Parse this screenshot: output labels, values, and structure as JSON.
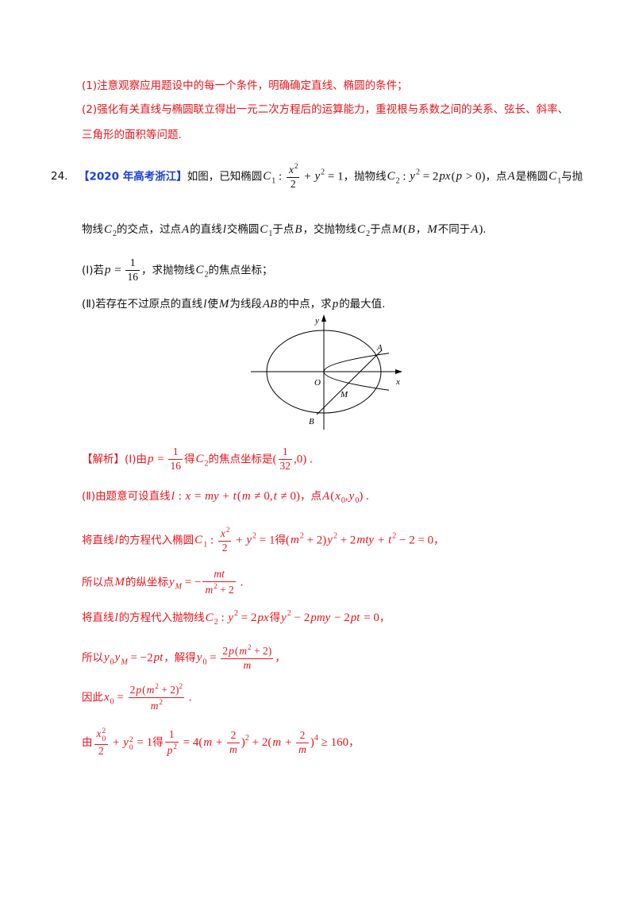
{
  "colors": {
    "note_red": "#e8141b",
    "tag_blue": "#1a3fd6",
    "text": "#111111"
  },
  "notes": [
    {
      "runs": [
        {
          "t": "(1)注意观察应用题设中的每一个条件，明确确定直线、椭圆的条件；"
        }
      ]
    },
    {
      "runs": [
        {
          "t": "(2)强化有关直线与椭圆联立得出一元二次方程后的运算能力，重视根与系数之间的关系、弦长、斜率、"
        }
      ]
    },
    {
      "runs": [
        {
          "t": "三角形的面积等问题."
        }
      ]
    }
  ],
  "problem": {
    "number": "24.",
    "lines": [
      {
        "runs": [
          {
            "tag": "【2020 年高考浙江】"
          },
          {
            "t": "如图，已知椭圆"
          },
          {
            "i": "C"
          },
          {
            "sub": "1"
          },
          {
            "n": " : "
          },
          {
            "frac": {
              "num": [
                {
                  "i": "x"
                },
                {
                  "sup": "2"
                }
              ],
              "den": [
                {
                  "n": "2"
                }
              ]
            }
          },
          {
            "n": " + "
          },
          {
            "i": "y"
          },
          {
            "sup": "2"
          },
          {
            "n": " = 1"
          },
          {
            "t": "，抛物线"
          },
          {
            "i": "C"
          },
          {
            "sub": "2"
          },
          {
            "n": " : "
          },
          {
            "i": "y"
          },
          {
            "sup": "2"
          },
          {
            "n": " = 2"
          },
          {
            "i": "px"
          },
          {
            "n": "("
          },
          {
            "i": "p"
          },
          {
            "n": " > 0)"
          },
          {
            "t": "，点"
          },
          {
            "i": "A"
          },
          {
            "t": "是椭圆"
          },
          {
            "i": "C"
          },
          {
            "sub": "1"
          },
          {
            "t": "与抛"
          }
        ]
      },
      {
        "runs": [
          {
            "t": "物线"
          },
          {
            "i": "C"
          },
          {
            "sub": "2"
          },
          {
            "t": "的交点，过点"
          },
          {
            "i": "A"
          },
          {
            "t": "的直线"
          },
          {
            "i": "l"
          },
          {
            "t": "交椭圆"
          },
          {
            "i": "C"
          },
          {
            "sub": "1"
          },
          {
            "t": "于点"
          },
          {
            "i": "B"
          },
          {
            "t": "，交抛物线"
          },
          {
            "i": "C"
          },
          {
            "sub": "2"
          },
          {
            "t": "于点"
          },
          {
            "i": "M"
          },
          {
            "n": "("
          },
          {
            "i": "B"
          },
          {
            "t": "，"
          },
          {
            "i": "M"
          },
          {
            "t": "不同于"
          },
          {
            "i": "A"
          },
          {
            "n": ")."
          }
        ]
      },
      {
        "runs": [
          {
            "t": "(Ⅰ)若"
          },
          {
            "i": "p"
          },
          {
            "n": " = "
          },
          {
            "frac": {
              "num": [
                {
                  "n": "1"
                }
              ],
              "den": [
                {
                  "n": "16"
                }
              ]
            }
          },
          {
            "t": "，求抛物线"
          },
          {
            "i": "C"
          },
          {
            "sub": "2"
          },
          {
            "t": "的焦点坐标；"
          }
        ]
      },
      {
        "runs": [
          {
            "t": "(Ⅱ)若存在不过原点的直线"
          },
          {
            "i": "l"
          },
          {
            "t": "使"
          },
          {
            "i": "M"
          },
          {
            "t": "为线段"
          },
          {
            "i": "AB"
          },
          {
            "t": "的中点，求"
          },
          {
            "i": "p"
          },
          {
            "t": "的最大值."
          }
        ]
      }
    ]
  },
  "figure": {
    "y_axis": "y",
    "x_axis": "x",
    "origin": "O",
    "point_a": "A",
    "point_m": "M",
    "point_b": "B"
  },
  "solution": {
    "lines": [
      {
        "runs": [
          {
            "t": "【解析】(Ⅰ)由"
          },
          {
            "i": "p"
          },
          {
            "n": " = "
          },
          {
            "frac": {
              "num": [
                {
                  "n": "1"
                }
              ],
              "den": [
                {
                  "n": "16"
                }
              ]
            }
          },
          {
            "t": "得"
          },
          {
            "i": "C"
          },
          {
            "sub": "2"
          },
          {
            "t": "的焦点坐标是"
          },
          {
            "n": "("
          },
          {
            "frac": {
              "num": [
                {
                  "n": "1"
                }
              ],
              "den": [
                {
                  "n": "32"
                }
              ]
            }
          },
          {
            "n": ",0) ."
          }
        ]
      },
      {
        "runs": [
          {
            "t": "(Ⅱ)由题意可设直线"
          },
          {
            "i": "l"
          },
          {
            "n": " : "
          },
          {
            "i": "x"
          },
          {
            "n": " = "
          },
          {
            "i": "my"
          },
          {
            "n": " + "
          },
          {
            "i": "t"
          },
          {
            "n": "("
          },
          {
            "i": "m"
          },
          {
            "n": " ≠ 0,"
          },
          {
            "i": "t"
          },
          {
            "n": " ≠ 0)"
          },
          {
            "t": "，点"
          },
          {
            "i": "A"
          },
          {
            "n": "("
          },
          {
            "i": "x"
          },
          {
            "sub": "0"
          },
          {
            "n": ","
          },
          {
            "i": "y"
          },
          {
            "sub": "0"
          },
          {
            "n": ") ."
          }
        ]
      },
      {
        "runs": [
          {
            "t": "将直线"
          },
          {
            "i": "l"
          },
          {
            "t": "的方程代入椭圆"
          },
          {
            "i": "C"
          },
          {
            "sub": "1"
          },
          {
            "n": " : "
          },
          {
            "frac": {
              "num": [
                {
                  "i": "x"
                },
                {
                  "sup": "2"
                }
              ],
              "den": [
                {
                  "n": "2"
                }
              ]
            }
          },
          {
            "n": " + "
          },
          {
            "i": "y"
          },
          {
            "sup": "2"
          },
          {
            "n": " = 1"
          },
          {
            "t": "得"
          },
          {
            "n": "("
          },
          {
            "i": "m"
          },
          {
            "sup": "2"
          },
          {
            "n": " + 2)"
          },
          {
            "i": "y"
          },
          {
            "sup": "2"
          },
          {
            "n": " + 2"
          },
          {
            "i": "mty"
          },
          {
            "n": " + "
          },
          {
            "i": "t"
          },
          {
            "sup": "2"
          },
          {
            "n": " − 2 = 0"
          },
          {
            "t": "，"
          }
        ]
      },
      {
        "runs": [
          {
            "t": "所以点"
          },
          {
            "i": "M"
          },
          {
            "t": "的纵坐标"
          },
          {
            "i": "y"
          },
          {
            "subi": "M"
          },
          {
            "n": " = −"
          },
          {
            "frac": {
              "num": [
                {
                  "i": "mt"
                }
              ],
              "den": [
                {
                  "i": "m"
                },
                {
                  "sup": "2"
                },
                {
                  "n": " + 2"
                }
              ]
            }
          },
          {
            "n": " ."
          }
        ]
      },
      {
        "runs": [
          {
            "t": "将直线"
          },
          {
            "i": "l"
          },
          {
            "t": "的方程代入抛物线"
          },
          {
            "i": "C"
          },
          {
            "sub": "2"
          },
          {
            "n": " : "
          },
          {
            "i": "y"
          },
          {
            "sup": "2"
          },
          {
            "n": " = 2"
          },
          {
            "i": "px"
          },
          {
            "t": "得"
          },
          {
            "i": "y"
          },
          {
            "sup": "2"
          },
          {
            "n": " − 2"
          },
          {
            "i": "pmy"
          },
          {
            "n": " − 2"
          },
          {
            "i": "pt"
          },
          {
            "n": " = 0"
          },
          {
            "t": "，"
          }
        ]
      },
      {
        "runs": [
          {
            "t": "所以"
          },
          {
            "i": "y"
          },
          {
            "sub": "0"
          },
          {
            "i": "y"
          },
          {
            "subi": "M"
          },
          {
            "n": " = −2"
          },
          {
            "i": "pt"
          },
          {
            "t": "，解得"
          },
          {
            "i": "y"
          },
          {
            "sub": "0"
          },
          {
            "n": " = "
          },
          {
            "frac": {
              "num": [
                {
                  "n": "2"
                },
                {
                  "i": "p"
                },
                {
                  "n": "("
                },
                {
                  "i": "m"
                },
                {
                  "sup": "2"
                },
                {
                  "n": " + 2)"
                }
              ],
              "den": [
                {
                  "i": "m"
                }
              ]
            }
          },
          {
            "t": "，"
          }
        ]
      },
      {
        "runs": [
          {
            "t": "因此"
          },
          {
            "i": "x"
          },
          {
            "sub": "0"
          },
          {
            "n": " = "
          },
          {
            "frac": {
              "num": [
                {
                  "n": "2"
                },
                {
                  "i": "p"
                },
                {
                  "n": "("
                },
                {
                  "i": "m"
                },
                {
                  "sup": "2"
                },
                {
                  "n": " + 2)"
                },
                {
                  "sup": "2"
                }
              ],
              "den": [
                {
                  "i": "m"
                },
                {
                  "sup": "2"
                }
              ]
            }
          },
          {
            "n": " ."
          }
        ]
      },
      {
        "runs": [
          {
            "t": "由"
          },
          {
            "frac": {
              "num": [
                {
                  "i": "x"
                },
                {
                  "ss": {
                    "sup": "2",
                    "sub": "0"
                  }
                }
              ],
              "den": [
                {
                  "n": "2"
                }
              ]
            }
          },
          {
            "n": " + "
          },
          {
            "i": "y"
          },
          {
            "ss": {
              "sup": "2",
              "sub": "0"
            }
          },
          {
            "n": " = 1"
          },
          {
            "t": "得"
          },
          {
            "frac": {
              "num": [
                {
                  "n": "1"
                }
              ],
              "den": [
                {
                  "i": "p"
                },
                {
                  "sup": "2"
                }
              ]
            }
          },
          {
            "n": " = 4("
          },
          {
            "i": "m"
          },
          {
            "n": " + "
          },
          {
            "frac": {
              "num": [
                {
                  "n": "2"
                }
              ],
              "den": [
                {
                  "i": "m"
                }
              ]
            }
          },
          {
            "n": ")"
          },
          {
            "sup": "2"
          },
          {
            "n": " + 2("
          },
          {
            "i": "m"
          },
          {
            "n": " + "
          },
          {
            "frac": {
              "num": [
                {
                  "n": "2"
                }
              ],
              "den": [
                {
                  "i": "m"
                }
              ]
            }
          },
          {
            "n": ")"
          },
          {
            "sup": "4"
          },
          {
            "n": " ≥ 160"
          },
          {
            "t": "，"
          }
        ]
      }
    ]
  }
}
